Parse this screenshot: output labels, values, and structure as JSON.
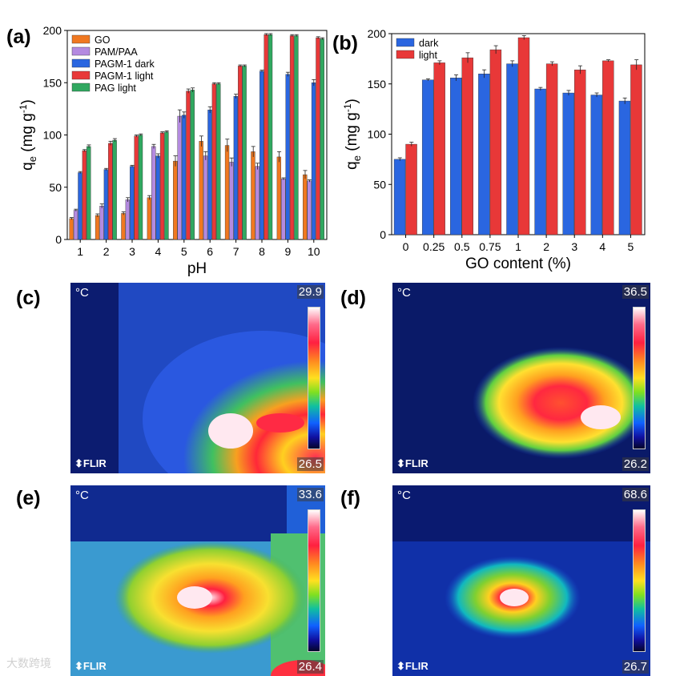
{
  "panel_labels": {
    "a": "(a)",
    "b": "(b)",
    "c": "(c)",
    "d": "(d)",
    "e": "(e)",
    "f": "(f)"
  },
  "chart_data": [
    {
      "type": "bar",
      "panel": "(a)",
      "xlabel": "pH",
      "ylabel": "q",
      "ylabel_sub": "e",
      "ylabel_unit": " (mg g",
      "ylabel_sup": "-1",
      "ylabel_close": ")",
      "ylim": [
        0,
        200
      ],
      "yticks": [
        0,
        50,
        100,
        150,
        200
      ],
      "categories": [
        "1",
        "2",
        "3",
        "4",
        "5",
        "6",
        "7",
        "8",
        "9",
        "10"
      ],
      "legend_position": "top-left",
      "series": [
        {
          "name": "GO",
          "color": "#f07820",
          "values": [
            20,
            23,
            25,
            40,
            75,
            94,
            90,
            84,
            79,
            62
          ],
          "errors": [
            1,
            1.5,
            1.5,
            2,
            5,
            5,
            6,
            5,
            5,
            4
          ]
        },
        {
          "name": "PAM/PAA",
          "color": "#b48ae0",
          "values": [
            28,
            32,
            38,
            89,
            118,
            80,
            74,
            70,
            58,
            56
          ],
          "errors": [
            1,
            2,
            2,
            2,
            6,
            4,
            4,
            3,
            1,
            1
          ]
        },
        {
          "name": "PAGM-1 dark",
          "color": "#2a66e0",
          "values": [
            64,
            67,
            70,
            80,
            119,
            124,
            137,
            161,
            158,
            150
          ],
          "errors": [
            1,
            1,
            1,
            2,
            3,
            3,
            2,
            1,
            2,
            3
          ]
        },
        {
          "name": "PAGM-1 light",
          "color": "#e83838",
          "values": [
            85,
            92,
            99,
            102,
            142,
            149,
            166,
            196,
            195,
            193
          ],
          "errors": [
            1,
            2,
            1,
            1,
            2,
            1,
            1,
            1,
            1,
            1
          ]
        },
        {
          "name": "PAG light",
          "color": "#30a860",
          "values": [
            89,
            95,
            100,
            103,
            143,
            149,
            166,
            196,
            195,
            192
          ],
          "errors": [
            1.5,
            1.5,
            1,
            1,
            2,
            1,
            1,
            1,
            1,
            1
          ]
        }
      ]
    },
    {
      "type": "bar",
      "panel": "(b)",
      "xlabel": "GO content (%)",
      "ylabel": "q",
      "ylabel_sub": "e",
      "ylabel_unit": " (mg g",
      "ylabel_sup": "-1",
      "ylabel_close": ")",
      "ylim": [
        0,
        200
      ],
      "yticks": [
        0,
        50,
        100,
        150,
        200
      ],
      "categories": [
        "0",
        "0.25",
        "0.5",
        "0.75",
        "1",
        "2",
        "3",
        "4",
        "5"
      ],
      "legend_position": "top-left",
      "series": [
        {
          "name": "dark",
          "color": "#2a66e0",
          "values": [
            75,
            154,
            156,
            160,
            170,
            145,
            141,
            139,
            133
          ],
          "errors": [
            1.5,
            1,
            3,
            4,
            3,
            1.5,
            2.5,
            2,
            3
          ]
        },
        {
          "name": "light",
          "color": "#e83838",
          "values": [
            90,
            171,
            176,
            184,
            196,
            170,
            164,
            173,
            169
          ],
          "errors": [
            2,
            2,
            5,
            4,
            2,
            2,
            4,
            1,
            5
          ]
        }
      ]
    }
  ],
  "thermal_images": [
    {
      "label": "(c)",
      "unit": "°C",
      "max": "29.9",
      "min": "26.5",
      "brand": "FLIR"
    },
    {
      "label": "(d)",
      "unit": "°C",
      "max": "36.5",
      "min": "26.2",
      "brand": "FLIR"
    },
    {
      "label": "(e)",
      "unit": "°C",
      "max": "33.6",
      "min": "26.4",
      "brand": "FLIR"
    },
    {
      "label": "(f)",
      "unit": "°C",
      "max": "68.6",
      "min": "26.7",
      "brand": "FLIR"
    }
  ],
  "watermark": "大数跨境"
}
